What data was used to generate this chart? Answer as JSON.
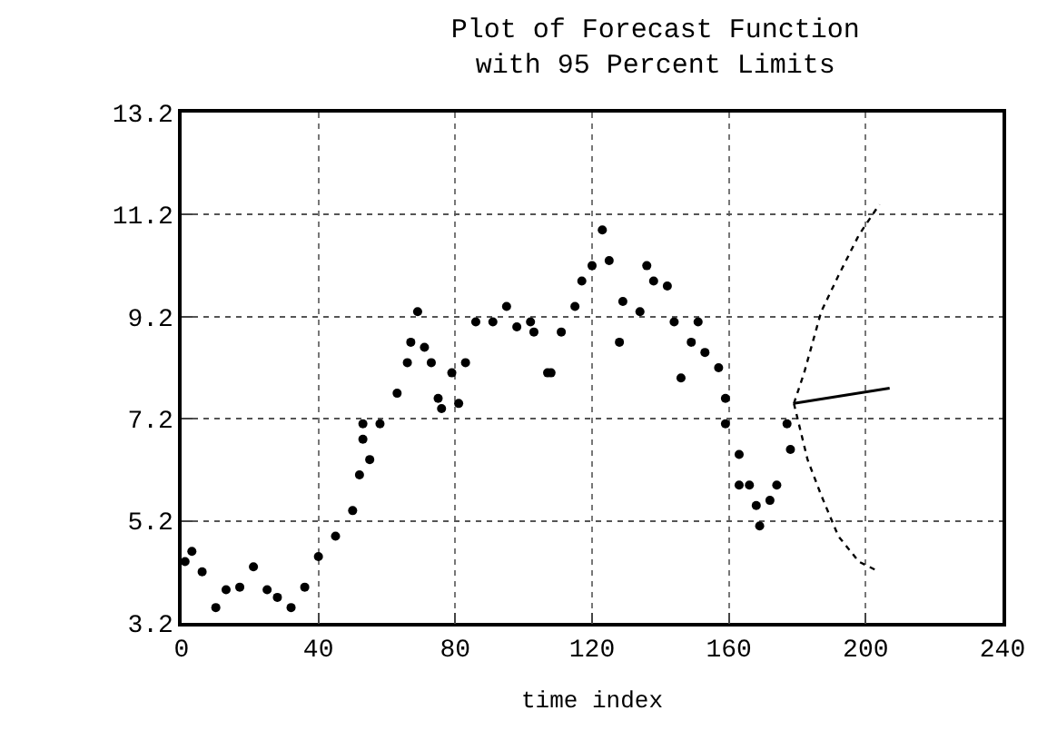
{
  "chart_data": {
    "type": "scatter",
    "title": "Plot of Forecast Function\nwith 95 Percent Limits",
    "xlabel": "time index",
    "xlim": [
      0,
      240
    ],
    "xticks": [
      0,
      40,
      80,
      120,
      160,
      200,
      240
    ],
    "ylim": [
      3.2,
      13.2
    ],
    "yticks": [
      3.2,
      5.2,
      7.2,
      9.2,
      11.2,
      13.2
    ],
    "grid": true,
    "legend": false,
    "series": [
      {
        "marker": "circle",
        "color": "#000000",
        "x": [
          1,
          3,
          6,
          10,
          13,
          17,
          21,
          25,
          28,
          32,
          36,
          40,
          45,
          50,
          52,
          53,
          53,
          55,
          58,
          63,
          66,
          67,
          69,
          71,
          73,
          75,
          76,
          79,
          81,
          83,
          86,
          91,
          95,
          98,
          102,
          103,
          107,
          108,
          111,
          115,
          117,
          120,
          123,
          125,
          128,
          129,
          134,
          136,
          138,
          142,
          144,
          146,
          149,
          151,
          153,
          157,
          159,
          159,
          163,
          163,
          166,
          168,
          169,
          172,
          174,
          177,
          178
        ],
        "values": [
          4.4,
          4.6,
          4.2,
          3.5,
          3.85,
          3.9,
          4.3,
          3.85,
          3.7,
          3.5,
          3.9,
          4.5,
          4.9,
          5.4,
          6.1,
          6.8,
          7.1,
          6.4,
          7.1,
          7.7,
          8.3,
          8.7,
          9.3,
          8.6,
          8.3,
          7.6,
          7.4,
          8.1,
          7.5,
          8.3,
          9.1,
          9.1,
          9.4,
          9.0,
          9.1,
          8.9,
          8.1,
          8.1,
          8.9,
          9.4,
          9.9,
          10.2,
          10.9,
          10.3,
          8.7,
          9.5,
          9.3,
          10.2,
          9.9,
          9.8,
          9.1,
          8.0,
          8.7,
          9.1,
          8.5,
          8.2,
          7.6,
          7.1,
          6.5,
          5.9,
          5.9,
          5.5,
          5.1,
          5.6,
          5.9,
          7.1,
          6.6
        ]
      },
      {
        "type": "line",
        "line_style": "solid",
        "color": "#000000",
        "x": [
          179,
          207
        ],
        "values": [
          7.5,
          7.8
        ]
      },
      {
        "type": "line",
        "line_style": "dotted",
        "color": "#000000",
        "x": [
          179,
          182,
          187,
          192,
          198,
          204
        ],
        "values": [
          7.5,
          8.1,
          9.3,
          10.0,
          10.8,
          11.4
        ]
      },
      {
        "type": "line",
        "line_style": "dotted",
        "color": "#000000",
        "x": [
          179,
          183,
          187,
          192,
          198,
          204
        ],
        "values": [
          7.5,
          6.4,
          5.7,
          4.9,
          4.4,
          4.2
        ]
      }
    ]
  }
}
